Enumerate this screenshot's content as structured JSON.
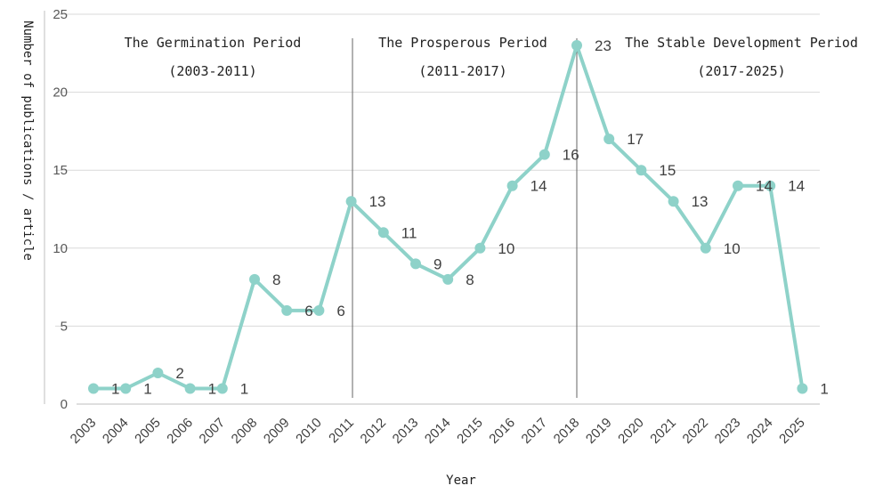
{
  "chart_data": {
    "type": "line",
    "title": "",
    "xlabel": "Year",
    "ylabel": "Number of publications / article",
    "ylim": [
      0,
      25
    ],
    "yticks": [
      0,
      5,
      10,
      15,
      20,
      25
    ],
    "grid": true,
    "legend": "none",
    "line_color": "#8ed2c9",
    "categories": [
      "2003",
      "2004",
      "2005",
      "2006",
      "2007",
      "2008",
      "2009",
      "2010",
      "2011",
      "2012",
      "2013",
      "2014",
      "2015",
      "2016",
      "2017",
      "2018",
      "2019",
      "2020",
      "2021",
      "2022",
      "2023",
      "2024",
      "2025"
    ],
    "series": [
      {
        "values": [
          1,
          1,
          2,
          1,
          1,
          8,
          6,
          6,
          13,
          11,
          9,
          8,
          10,
          14,
          16,
          23,
          17,
          15,
          13,
          10,
          14,
          14,
          1
        ]
      }
    ],
    "dividers": [
      "2011",
      "2018"
    ],
    "periods": [
      {
        "name": "The Germination Period",
        "range": "(2003-2011)"
      },
      {
        "name": "The Prosperous Period",
        "range": "(2011-2017)"
      },
      {
        "name": "The Stable Development Period",
        "range": "(2017-2025)"
      }
    ]
  }
}
